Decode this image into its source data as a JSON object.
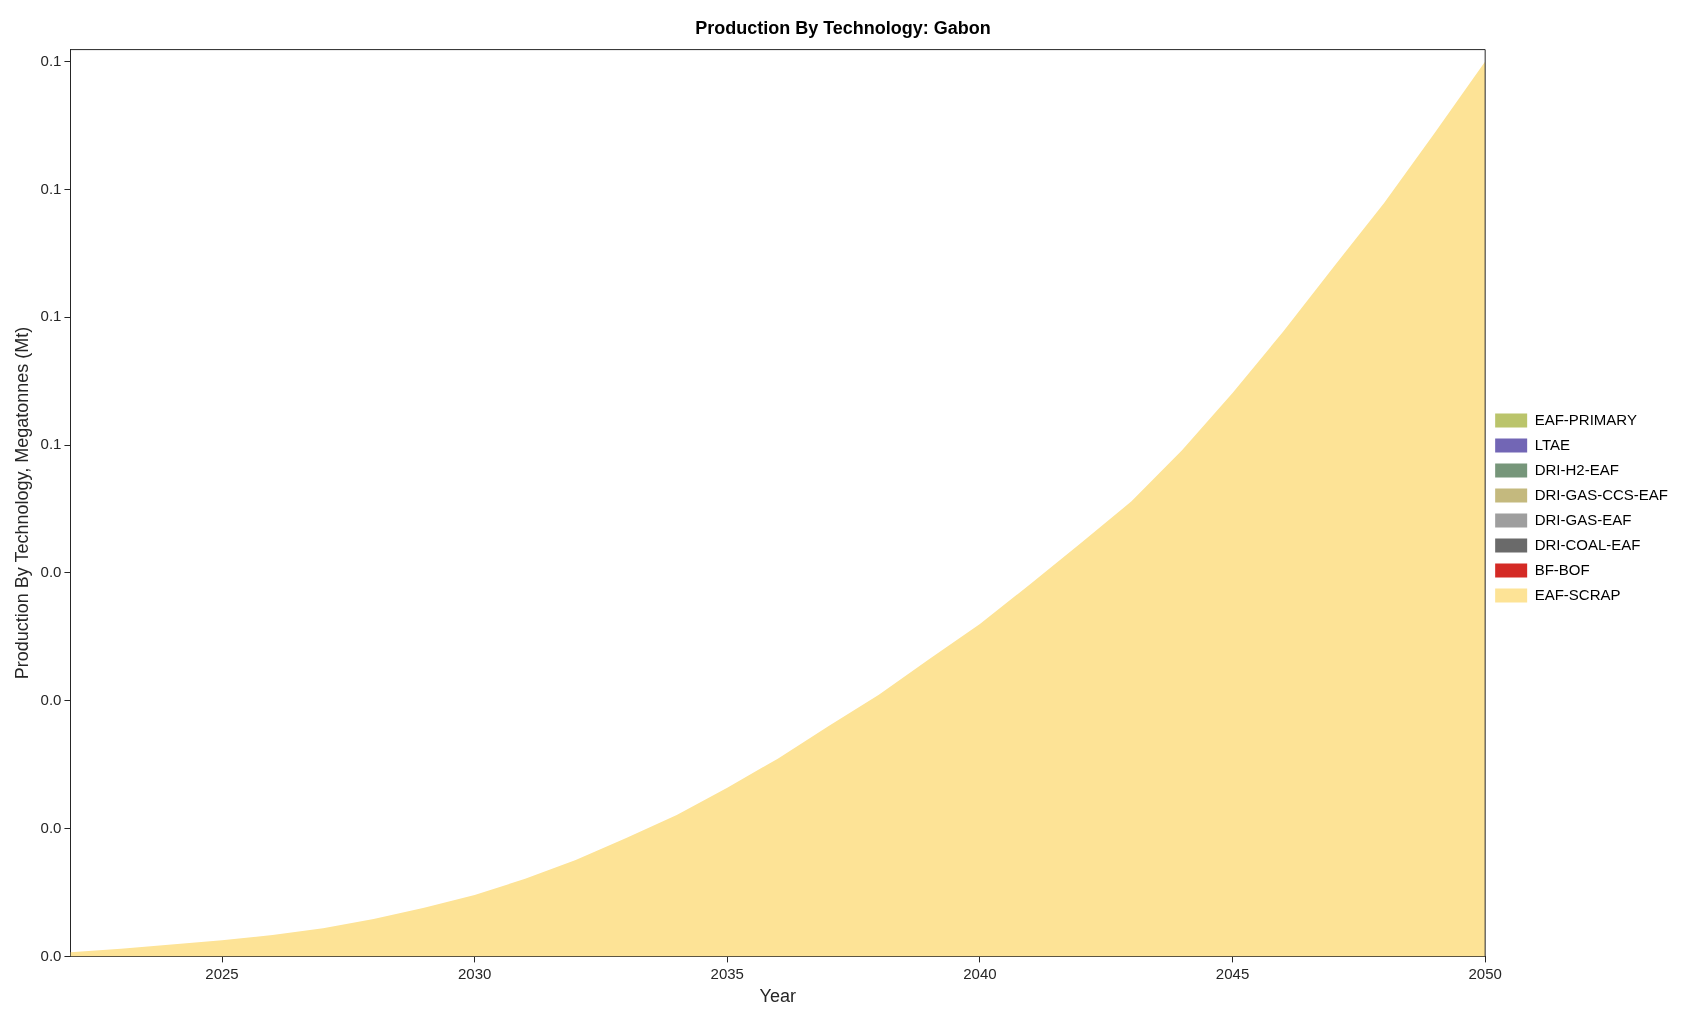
{
  "chart_data": {
    "type": "area",
    "title": "Production By Technology: Gabon",
    "xlabel": "Year",
    "ylabel": "Production By Technology, Megatonnes (Mt)",
    "legend": "right",
    "grid": false,
    "x": [
      2022,
      2023,
      2024,
      2025,
      2026,
      2027,
      2028,
      2029,
      2030,
      2031,
      2032,
      2033,
      2034,
      2035,
      2036,
      2037,
      2038,
      2039,
      2040,
      2041,
      2042,
      2043,
      2044,
      2045,
      2046,
      2047,
      2048,
      2049,
      2050
    ],
    "xlim": [
      2022,
      2050
    ],
    "xticks": [
      2025,
      2030,
      2035,
      2040,
      2045,
      2050
    ],
    "ylim": [
      0,
      0.1064
    ],
    "yticks": [
      {
        "value": 0,
        "label": "0.0"
      },
      {
        "value": 0.015,
        "label": "0.0"
      },
      {
        "value": 0.03,
        "label": "0.0"
      },
      {
        "value": 0.045,
        "label": "0.0"
      },
      {
        "value": 0.06,
        "label": "0.1"
      },
      {
        "value": 0.075,
        "label": "0.1"
      },
      {
        "value": 0.09,
        "label": "0.1"
      },
      {
        "value": 0.105,
        "label": "0.1"
      }
    ],
    "series": [
      {
        "name": "EAF-SCRAP",
        "color": "#fde396",
        "values": [
          0.0005,
          0.0009,
          0.0014,
          0.0019,
          0.0025,
          0.0033,
          0.0044,
          0.0057,
          0.0072,
          0.0091,
          0.0113,
          0.0139,
          0.0166,
          0.0198,
          0.0232,
          0.027,
          0.0307,
          0.0349,
          0.039,
          0.0437,
          0.0485,
          0.0534,
          0.0594,
          0.0661,
          0.0733,
          0.0809,
          0.0884,
          0.0966,
          0.105
        ]
      },
      {
        "name": "BF-BOF",
        "color": "#d42a25",
        "values": [
          null,
          null,
          null,
          null,
          null,
          null,
          null,
          null,
          null,
          null,
          null,
          null,
          null,
          null,
          null,
          null,
          null,
          null,
          null,
          null,
          null,
          null,
          null,
          null,
          null,
          null,
          null,
          null,
          null
        ]
      },
      {
        "name": "DRI-COAL-EAF",
        "color": "#6a6a6a",
        "values": [
          null,
          null,
          null,
          null,
          null,
          null,
          null,
          null,
          null,
          null,
          null,
          null,
          null,
          null,
          null,
          null,
          null,
          null,
          null,
          null,
          null,
          null,
          null,
          null,
          null,
          null,
          null,
          null,
          null
        ]
      },
      {
        "name": "DRI-GAS-EAF",
        "color": "#9e9e9e",
        "values": [
          null,
          null,
          null,
          null,
          null,
          null,
          null,
          null,
          null,
          null,
          null,
          null,
          null,
          null,
          null,
          null,
          null,
          null,
          null,
          null,
          null,
          null,
          null,
          null,
          null,
          null,
          null,
          null,
          null
        ]
      },
      {
        "name": "DRI-GAS-CCS-EAF",
        "color": "#c4b97e",
        "values": [
          null,
          null,
          null,
          null,
          null,
          null,
          null,
          null,
          null,
          null,
          null,
          null,
          null,
          null,
          null,
          null,
          null,
          null,
          null,
          null,
          null,
          null,
          null,
          null,
          null,
          null,
          null,
          null,
          null
        ]
      },
      {
        "name": "DRI-H2-EAF",
        "color": "#76967a",
        "values": [
          null,
          null,
          null,
          null,
          null,
          null,
          null,
          null,
          null,
          null,
          null,
          null,
          null,
          null,
          null,
          null,
          null,
          null,
          null,
          null,
          null,
          null,
          null,
          null,
          null,
          null,
          null,
          null,
          null
        ]
      },
      {
        "name": "LTAE",
        "color": "#7266b5",
        "values": [
          null,
          null,
          null,
          null,
          null,
          null,
          null,
          null,
          null,
          null,
          null,
          null,
          null,
          null,
          null,
          null,
          null,
          null,
          null,
          null,
          null,
          null,
          null,
          null,
          null,
          null,
          null,
          null,
          null
        ]
      },
      {
        "name": "EAF-PRIMARY",
        "color": "#bac46b",
        "values": [
          null,
          null,
          null,
          null,
          null,
          null,
          null,
          null,
          null,
          null,
          null,
          null,
          null,
          null,
          null,
          null,
          null,
          null,
          null,
          null,
          null,
          null,
          null,
          null,
          null,
          null,
          null,
          null,
          null
        ]
      }
    ]
  }
}
